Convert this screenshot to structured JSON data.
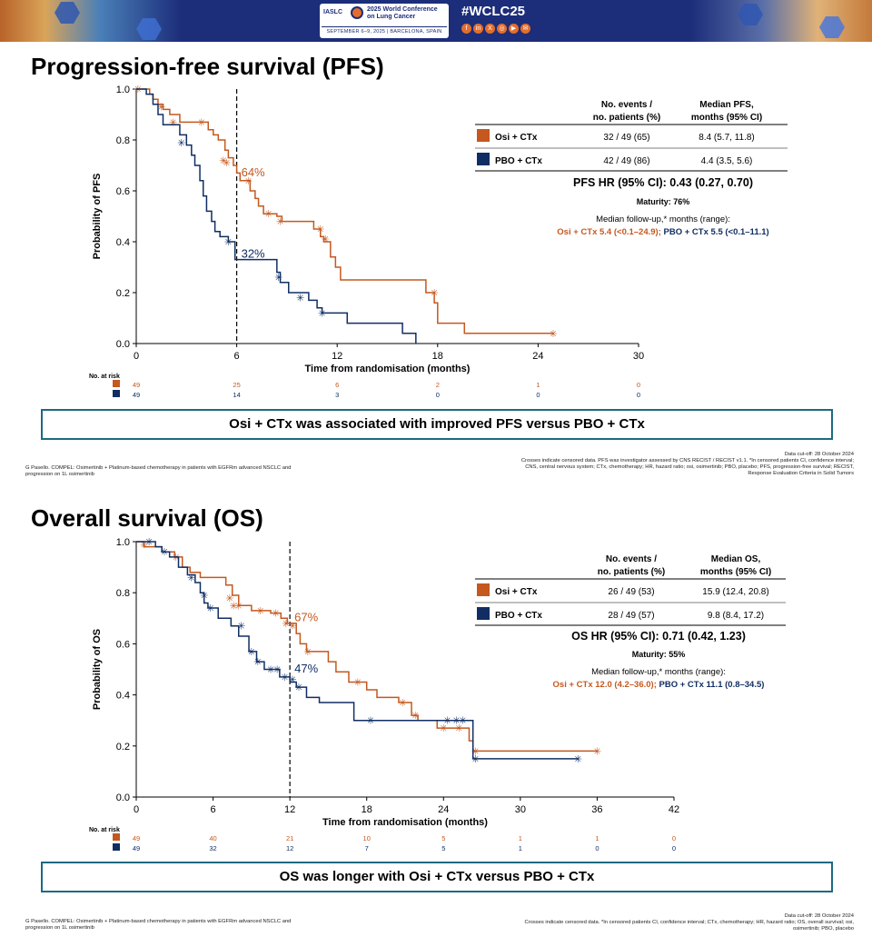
{
  "banner": {
    "org": "IASLC",
    "conference_title": "2025 World Conference on Lung Cancer",
    "dates": "SEPTEMBER 6–9, 2025 | BARCELONA, SPAIN",
    "hashtag": "#WCLC25"
  },
  "colors": {
    "osi": "#c4581f",
    "pbo": "#102e63",
    "box_border": "#1b6a82"
  },
  "x_axis_title": "Time from randomisation (months)",
  "at_risk_label": "No. at risk",
  "table_labels": {
    "events_header_1": "No. events /",
    "events_header_2": "no. patients (%)",
    "arm_osi": "Osi + CTx",
    "arm_pbo": "PBO + CTx"
  },
  "pfs": {
    "title": "Progression-free survival (PFS)",
    "median_header_1": "Median PFS,",
    "median_header_2": "months (95% CI)",
    "osi_events": "32 / 49 (65)",
    "osi_median": "8.4 (5.7, 11.8)",
    "pbo_events": "42 / 49 (86)",
    "pbo_median": "4.4 (3.5, 5.6)",
    "hr": "PFS HR (95% CI): 0.43 (0.27, 0.70)",
    "maturity": "Maturity: 76%",
    "followup_label": "Median follow-up,* months (range):",
    "followup_osi": "Osi + CTx 5.4 (<0.1–24.9);",
    "followup_pbo": "PBO + CTx 5.5 (<0.1–11.1)",
    "conclusion": "Osi + CTx was associated with improved PFS versus PBO + CTx",
    "footer_left": "G Pasello. COMPEL: Osimertinib + Platinum-based chemotherapy in patients with EGFRm advanced NSCLC and progression on 1L osimertinib",
    "footer_cutoff": "Data cut-off: 28 October 2024",
    "footer_right": "Crosses indicate censored data. PFS was investigator assessed by CNS RECIST / RECIST v1.1. *In censored patients CI, confidence interval; CNS, central nervous system; CTx, chemotherapy; HR, hazard ratio; osi, osimertinib; PBO, placebo; PFS, progression-free survival; RECIST, Response Evaluation Criteria in Solid Tumors"
  },
  "os": {
    "title": "Overall survival (OS)",
    "median_header_1": "Median OS,",
    "median_header_2": "months (95% CI)",
    "osi_events": "26 / 49 (53)",
    "osi_median": "15.9 (12.4, 20.8)",
    "pbo_events": "28 / 49 (57)",
    "pbo_median": "9.8 (8.4, 17.2)",
    "hr": "OS HR (95% CI): 0.71 (0.42, 1.23)",
    "maturity": "Maturity: 55%",
    "followup_label": "Median follow-up,* months (range):",
    "followup_osi": "Osi + CTx 12.0 (4.2–36.0);",
    "followup_pbo": "PBO + CTx 11.1 (0.8–34.5)",
    "conclusion": "OS was longer with Osi + CTx versus PBO + CTx",
    "footer_left": "G Pasello. COMPEL: Osimertinib + Platinum-based chemotherapy in patients with EGFRm advanced NSCLC and progression on 1L osimertinib",
    "footer_cutoff": "Data cut-off: 28 October 2024",
    "footer_right": "Crosses indicate censored data. *In censored patients CI, confidence interval; CTx, chemotherapy; HR, hazard ratio; OS, overall survival; osi, osimertinib; PBO, placebo"
  },
  "chart_data": [
    {
      "type": "line",
      "subtype": "kaplan-meier",
      "title": "Progression-free survival (PFS)",
      "xlabel": "Time from randomisation (months)",
      "ylabel": "Probability of PFS",
      "xlim": [
        0,
        30
      ],
      "ylim": [
        0,
        1
      ],
      "xticks": [
        0,
        6,
        12,
        18,
        24,
        30
      ],
      "yticks": [
        0.0,
        0.2,
        0.4,
        0.6,
        0.8,
        1.0
      ],
      "ytick_labels": [
        "0.0",
        "0.2",
        "0.4",
        "0.6",
        "0.8",
        "1.0"
      ],
      "reference_line_x": 6,
      "series": [
        {
          "name": "Osi + CTx",
          "color": "#c4581f",
          "steps": [
            [
              0,
              1.0
            ],
            [
              0.8,
              0.98
            ],
            [
              1.0,
              0.96
            ],
            [
              1.3,
              0.94
            ],
            [
              1.6,
              0.92
            ],
            [
              2.0,
              0.9
            ],
            [
              2.6,
              0.87
            ],
            [
              4.0,
              0.87
            ],
            [
              4.3,
              0.84
            ],
            [
              4.6,
              0.82
            ],
            [
              4.9,
              0.8
            ],
            [
              5.3,
              0.76
            ],
            [
              5.5,
              0.73
            ],
            [
              5.8,
              0.7
            ],
            [
              6.0,
              0.67
            ],
            [
              6.2,
              0.64
            ],
            [
              6.8,
              0.6
            ],
            [
              7.1,
              0.57
            ],
            [
              7.3,
              0.54
            ],
            [
              7.6,
              0.51
            ],
            [
              8.4,
              0.5
            ],
            [
              8.7,
              0.48
            ],
            [
              10.6,
              0.45
            ],
            [
              11.0,
              0.42
            ],
            [
              11.2,
              0.4
            ],
            [
              11.6,
              0.34
            ],
            [
              11.9,
              0.3
            ],
            [
              12.2,
              0.25
            ],
            [
              17.3,
              0.2
            ],
            [
              17.8,
              0.16
            ],
            [
              18.0,
              0.08
            ],
            [
              19.6,
              0.04
            ],
            [
              24.9,
              0.04
            ]
          ],
          "censored": [
            [
              0.1,
              1.0
            ],
            [
              1.5,
              0.93
            ],
            [
              2.2,
              0.87
            ],
            [
              3.9,
              0.87
            ],
            [
              5.2,
              0.72
            ],
            [
              5.4,
              0.71
            ],
            [
              6.7,
              0.64
            ],
            [
              7.9,
              0.51
            ],
            [
              8.6,
              0.48
            ],
            [
              11.0,
              0.45
            ],
            [
              11.3,
              0.41
            ],
            [
              17.8,
              0.2
            ],
            [
              24.9,
              0.04
            ]
          ],
          "at_risk": [
            49,
            25,
            6,
            2,
            1,
            0
          ],
          "label_text": "64%",
          "label_value": 0.64
        },
        {
          "name": "PBO + CTx",
          "color": "#102e63",
          "steps": [
            [
              0,
              1.0
            ],
            [
              0.6,
              0.98
            ],
            [
              1.0,
              0.94
            ],
            [
              1.3,
              0.9
            ],
            [
              1.6,
              0.86
            ],
            [
              2.6,
              0.82
            ],
            [
              3.0,
              0.78
            ],
            [
              3.3,
              0.74
            ],
            [
              3.5,
              0.7
            ],
            [
              3.8,
              0.64
            ],
            [
              4.0,
              0.58
            ],
            [
              4.2,
              0.52
            ],
            [
              4.5,
              0.48
            ],
            [
              4.7,
              0.44
            ],
            [
              5.0,
              0.42
            ],
            [
              5.5,
              0.4
            ],
            [
              5.9,
              0.33
            ],
            [
              8.4,
              0.28
            ],
            [
              8.6,
              0.24
            ],
            [
              9.1,
              0.2
            ],
            [
              10.3,
              0.17
            ],
            [
              10.8,
              0.14
            ],
            [
              11.1,
              0.12
            ],
            [
              12.6,
              0.08
            ],
            [
              15.9,
              0.04
            ],
            [
              16.7,
              0.0
            ]
          ],
          "censored": [
            [
              2.7,
              0.79
            ],
            [
              5.5,
              0.4
            ],
            [
              8.5,
              0.26
            ],
            [
              9.8,
              0.18
            ],
            [
              11.1,
              0.12
            ]
          ],
          "at_risk": [
            49,
            14,
            3,
            0,
            0,
            0
          ],
          "label_text": "32%",
          "label_value": 0.32
        }
      ]
    },
    {
      "type": "line",
      "subtype": "kaplan-meier",
      "title": "Overall survival (OS)",
      "xlabel": "Time from randomisation (months)",
      "ylabel": "Probability of OS",
      "xlim": [
        0,
        42
      ],
      "ylim": [
        0,
        1
      ],
      "xticks": [
        0,
        6,
        12,
        18,
        24,
        30,
        36,
        42
      ],
      "yticks": [
        0.0,
        0.2,
        0.4,
        0.6,
        0.8,
        1.0
      ],
      "ytick_labels": [
        "0.0",
        "0.2",
        "0.4",
        "0.6",
        "0.8",
        "1.0"
      ],
      "reference_line_x": 12,
      "series": [
        {
          "name": "Osi + CTx",
          "color": "#c4581f",
          "steps": [
            [
              0,
              1.0
            ],
            [
              0.6,
              0.98
            ],
            [
              2.0,
              0.96
            ],
            [
              3.0,
              0.94
            ],
            [
              3.6,
              0.9
            ],
            [
              4.2,
              0.88
            ],
            [
              5.0,
              0.86
            ],
            [
              7.0,
              0.83
            ],
            [
              7.5,
              0.79
            ],
            [
              8.0,
              0.75
            ],
            [
              9.0,
              0.73
            ],
            [
              10.5,
              0.72
            ],
            [
              11.3,
              0.7
            ],
            [
              11.8,
              0.68
            ],
            [
              12.5,
              0.64
            ],
            [
              12.8,
              0.6
            ],
            [
              13.3,
              0.57
            ],
            [
              15.0,
              0.53
            ],
            [
              15.6,
              0.49
            ],
            [
              16.6,
              0.45
            ],
            [
              18.0,
              0.42
            ],
            [
              18.8,
              0.39
            ],
            [
              20.5,
              0.37
            ],
            [
              21.5,
              0.32
            ],
            [
              22.0,
              0.3
            ],
            [
              23.5,
              0.27
            ],
            [
              26.0,
              0.22
            ],
            [
              26.3,
              0.18
            ],
            [
              36.0,
              0.18
            ]
          ],
          "censored": [
            [
              0.6,
              0.99
            ],
            [
              3.1,
              0.94
            ],
            [
              7.3,
              0.78
            ],
            [
              7.6,
              0.75
            ],
            [
              8.0,
              0.75
            ],
            [
              9.7,
              0.73
            ],
            [
              10.9,
              0.72
            ],
            [
              11.7,
              0.68
            ],
            [
              12.2,
              0.67
            ],
            [
              13.4,
              0.57
            ],
            [
              17.3,
              0.45
            ],
            [
              20.8,
              0.37
            ],
            [
              21.8,
              0.32
            ],
            [
              24.0,
              0.27
            ],
            [
              25.2,
              0.27
            ],
            [
              26.5,
              0.18
            ],
            [
              36.0,
              0.18
            ]
          ],
          "at_risk": [
            49,
            40,
            21,
            10,
            5,
            1,
            1,
            0
          ],
          "label_text": "67%",
          "label_value": 0.67
        },
        {
          "name": "PBO + CTx",
          "color": "#102e63",
          "steps": [
            [
              0,
              1.0
            ],
            [
              1.5,
              0.98
            ],
            [
              2.0,
              0.96
            ],
            [
              2.6,
              0.94
            ],
            [
              3.3,
              0.9
            ],
            [
              4.0,
              0.87
            ],
            [
              4.6,
              0.84
            ],
            [
              5.0,
              0.8
            ],
            [
              5.3,
              0.76
            ],
            [
              5.6,
              0.74
            ],
            [
              6.4,
              0.7
            ],
            [
              7.4,
              0.67
            ],
            [
              8.0,
              0.63
            ],
            [
              8.8,
              0.57
            ],
            [
              9.4,
              0.53
            ],
            [
              10.0,
              0.5
            ],
            [
              11.2,
              0.47
            ],
            [
              12.0,
              0.45
            ],
            [
              12.5,
              0.43
            ],
            [
              13.3,
              0.39
            ],
            [
              14.3,
              0.37
            ],
            [
              17.0,
              0.3
            ],
            [
              26.0,
              0.3
            ],
            [
              26.3,
              0.15
            ],
            [
              34.5,
              0.15
            ]
          ],
          "censored": [
            [
              1.0,
              1.0
            ],
            [
              2.2,
              0.96
            ],
            [
              4.3,
              0.86
            ],
            [
              5.3,
              0.79
            ],
            [
              5.8,
              0.74
            ],
            [
              8.2,
              0.67
            ],
            [
              9.0,
              0.57
            ],
            [
              9.5,
              0.53
            ],
            [
              10.5,
              0.5
            ],
            [
              11.0,
              0.5
            ],
            [
              11.6,
              0.47
            ],
            [
              12.2,
              0.46
            ],
            [
              12.7,
              0.43
            ],
            [
              18.3,
              0.3
            ],
            [
              24.3,
              0.3
            ],
            [
              25.0,
              0.3
            ],
            [
              25.5,
              0.3
            ],
            [
              26.5,
              0.15
            ],
            [
              34.5,
              0.15
            ]
          ],
          "at_risk": [
            49,
            32,
            12,
            7,
            5,
            1,
            0,
            0
          ],
          "label_text": "47%",
          "label_value": 0.47
        }
      ]
    }
  ]
}
